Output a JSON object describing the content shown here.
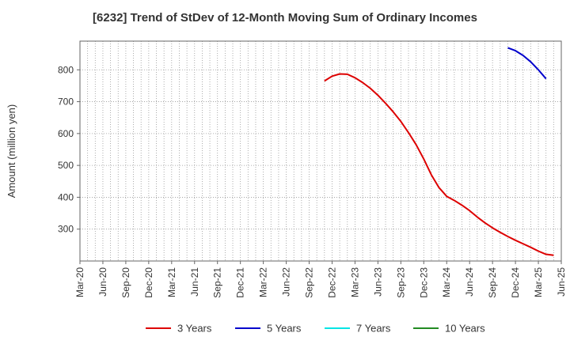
{
  "chart_data": {
    "type": "line",
    "title": "[6232]  Trend of StDev of 12-Month Moving Sum of Ordinary Incomes",
    "ylabel": "Amount (million yen)",
    "xlabel": "",
    "ylim": [
      200,
      890
    ],
    "yticks": [
      300,
      400,
      500,
      600,
      700,
      800
    ],
    "grid": true,
    "legend_position": "bottom",
    "x_ticks": [
      "Mar-20",
      "Jun-20",
      "Sep-20",
      "Dec-20",
      "Mar-21",
      "Jun-21",
      "Sep-21",
      "Dec-21",
      "Mar-22",
      "Jun-22",
      "Sep-22",
      "Dec-22",
      "Mar-23",
      "Jun-23",
      "Sep-23",
      "Dec-23",
      "Mar-24",
      "Jun-24",
      "Sep-24",
      "Dec-24",
      "Mar-25",
      "Jun-25"
    ],
    "series": [
      {
        "name": "3 Years",
        "color": "#dd0000",
        "points": [
          [
            "2022-11",
            765
          ],
          [
            "2022-12",
            780
          ],
          [
            "2023-01",
            787
          ],
          [
            "2023-02",
            786
          ],
          [
            "2023-03",
            775
          ],
          [
            "2023-04",
            760
          ],
          [
            "2023-05",
            742
          ],
          [
            "2023-06",
            720
          ],
          [
            "2023-07",
            695
          ],
          [
            "2023-08",
            668
          ],
          [
            "2023-09",
            638
          ],
          [
            "2023-10",
            603
          ],
          [
            "2023-11",
            565
          ],
          [
            "2023-12",
            520
          ],
          [
            "2024-01",
            470
          ],
          [
            "2024-02",
            430
          ],
          [
            "2024-03",
            403
          ],
          [
            "2024-04",
            390
          ],
          [
            "2024-05",
            375
          ],
          [
            "2024-06",
            358
          ],
          [
            "2024-07",
            338
          ],
          [
            "2024-08",
            320
          ],
          [
            "2024-09",
            304
          ],
          [
            "2024-10",
            290
          ],
          [
            "2024-11",
            277
          ],
          [
            "2024-12",
            265
          ],
          [
            "2025-01",
            254
          ],
          [
            "2025-02",
            243
          ],
          [
            "2025-03",
            231
          ],
          [
            "2025-04",
            221
          ],
          [
            "2025-05",
            218
          ]
        ]
      },
      {
        "name": "5 Years",
        "color": "#0000cc",
        "points": [
          [
            "2024-11",
            869
          ],
          [
            "2024-12",
            860
          ],
          [
            "2025-01",
            845
          ],
          [
            "2025-02",
            825
          ],
          [
            "2025-03",
            800
          ],
          [
            "2025-04",
            772
          ]
        ]
      },
      {
        "name": "7 Years",
        "color": "#00e5e5",
        "points": []
      },
      {
        "name": "10 Years",
        "color": "#228b22",
        "points": []
      }
    ]
  }
}
